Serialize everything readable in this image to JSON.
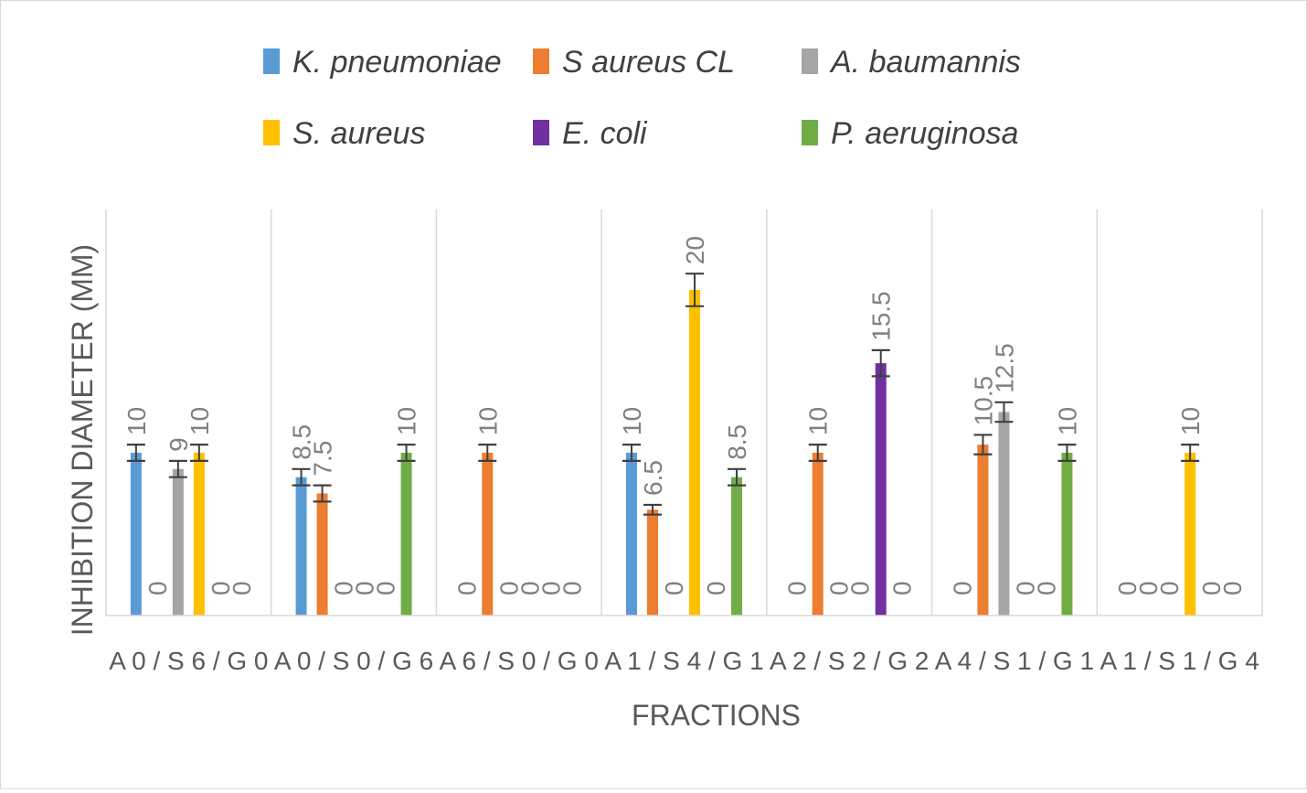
{
  "chart_data": {
    "type": "bar",
    "title": "",
    "xlabel": "FRACTIONS",
    "ylabel": "INHIBITION DIAMETER (MM)",
    "ylim": [
      0,
      25
    ],
    "grid": "vertical category separators only",
    "legend_position": "top",
    "categories": [
      "A 0 / S 6 / G 0",
      "A 0 / S 0 / G 6",
      "A 6 / S 0 / G 0",
      "A 1 / S 4 / G 1",
      "A 2 / S 2 / G 2",
      "A 4 / S 1 / G 1",
      "A 1 / S 1 / G 4"
    ],
    "series": [
      {
        "name": "K. pneumoniae",
        "color": "#5b9bd5",
        "values": [
          10,
          8.5,
          0,
          10,
          0,
          0,
          0
        ],
        "labels": [
          "10",
          "8.5",
          "0",
          "10",
          "0",
          "0",
          "0"
        ],
        "error": [
          0.5,
          0.5,
          0,
          0.5,
          0,
          0,
          0
        ]
      },
      {
        "name": "S aureus CL",
        "color": "#ed7d31",
        "values": [
          0,
          7.5,
          10,
          6.5,
          10,
          10.5,
          0
        ],
        "labels": [
          "0",
          "7.5",
          "10",
          "6.5",
          "10",
          "10.5",
          "0"
        ],
        "error": [
          0,
          0.5,
          0.5,
          0.3,
          0.5,
          0.6,
          0
        ]
      },
      {
        "name": "A. baumannis",
        "color": "#a5a5a5",
        "values": [
          9,
          0,
          0,
          0,
          0,
          12.5,
          0
        ],
        "labels": [
          "9",
          "0",
          "0",
          "0",
          "0",
          "12.5",
          "0"
        ],
        "error": [
          0.5,
          0,
          0,
          0,
          0,
          0.6,
          0
        ]
      },
      {
        "name": "S. aureus",
        "color": "#ffc000",
        "values": [
          10,
          0,
          0,
          20,
          0,
          0,
          10
        ],
        "labels": [
          "10",
          "0",
          "0",
          "20",
          "0",
          "0",
          "10"
        ],
        "error": [
          0.5,
          0,
          0,
          1.0,
          0,
          0,
          0.5
        ]
      },
      {
        "name": "E. coli",
        "color": "#7030a0",
        "values": [
          0,
          0,
          0,
          0,
          15.5,
          0,
          0
        ],
        "labels": [
          "0",
          "0",
          "0",
          "0",
          "15.5",
          "0",
          "0"
        ],
        "error": [
          0,
          0,
          0,
          0,
          0.8,
          0,
          0
        ]
      },
      {
        "name": "P. aeruginosa",
        "color": "#70ad47",
        "values": [
          0,
          10,
          0,
          8.5,
          0,
          10,
          0
        ],
        "labels": [
          "0",
          "10",
          "0",
          "8.5",
          "0",
          "10",
          "0"
        ],
        "error": [
          0,
          0.5,
          0,
          0.5,
          0,
          0.5,
          0
        ]
      }
    ]
  }
}
